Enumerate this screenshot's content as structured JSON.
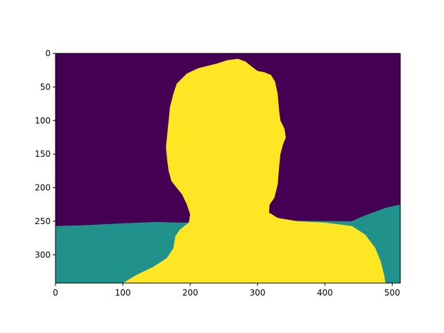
{
  "colors": {
    "background_class": "#440154",
    "floor_class": "#21918c",
    "person_class": "#fde725",
    "axis": "#000000"
  },
  "chart_data": {
    "type": "heatmap",
    "title": "",
    "xlabel": "",
    "ylabel": "",
    "image_width": 512,
    "image_height": 342,
    "xlim": [
      0,
      512
    ],
    "ylim": [
      342,
      0
    ],
    "x_ticks": [
      0,
      100,
      200,
      300,
      400,
      500
    ],
    "y_ticks": [
      0,
      50,
      100,
      150,
      200,
      250,
      300
    ],
    "classes": [
      {
        "value": 0,
        "color": "#440154"
      },
      {
        "value": 1,
        "color": "#21918c"
      },
      {
        "value": 2,
        "color": "#fde725"
      }
    ],
    "regions": [
      {
        "class": 1,
        "polygon": [
          [
            0,
            257
          ],
          [
            40,
            256
          ],
          [
            100,
            253
          ],
          [
            150,
            251
          ],
          [
            185,
            252
          ],
          [
            250,
            251
          ],
          [
            330,
            249
          ],
          [
            440,
            250
          ],
          [
            455,
            243
          ],
          [
            490,
            230
          ],
          [
            512,
            225
          ],
          [
            512,
            342
          ],
          [
            0,
            342
          ]
        ]
      },
      {
        "class": 2,
        "polygon": [
          [
            271,
            8
          ],
          [
            282,
            12
          ],
          [
            292,
            20
          ],
          [
            300,
            26
          ],
          [
            310,
            28
          ],
          [
            320,
            32
          ],
          [
            326,
            42
          ],
          [
            330,
            60
          ],
          [
            332,
            85
          ],
          [
            334,
            100
          ],
          [
            340,
            112
          ],
          [
            342,
            125
          ],
          [
            338,
            135
          ],
          [
            334,
            150
          ],
          [
            332,
            170
          ],
          [
            330,
            195
          ],
          [
            325,
            215
          ],
          [
            318,
            225
          ],
          [
            317,
            237
          ],
          [
            330,
            245
          ],
          [
            360,
            250
          ],
          [
            400,
            252
          ],
          [
            440,
            257
          ],
          [
            460,
            270
          ],
          [
            475,
            290
          ],
          [
            483,
            310
          ],
          [
            488,
            330
          ],
          [
            490,
            342
          ],
          [
            100,
            342
          ],
          [
            120,
            330
          ],
          [
            145,
            318
          ],
          [
            165,
            305
          ],
          [
            175,
            290
          ],
          [
            178,
            272
          ],
          [
            185,
            262
          ],
          [
            198,
            252
          ],
          [
            200,
            240
          ],
          [
            195,
            225
          ],
          [
            188,
            210
          ],
          [
            180,
            200
          ],
          [
            172,
            190
          ],
          [
            168,
            175
          ],
          [
            166,
            160
          ],
          [
            164,
            140
          ],
          [
            166,
            120
          ],
          [
            168,
            100
          ],
          [
            170,
            80
          ],
          [
            175,
            60
          ],
          [
            180,
            45
          ],
          [
            195,
            30
          ],
          [
            212,
            22
          ],
          [
            240,
            15
          ],
          [
            255,
            10
          ]
        ]
      }
    ]
  }
}
